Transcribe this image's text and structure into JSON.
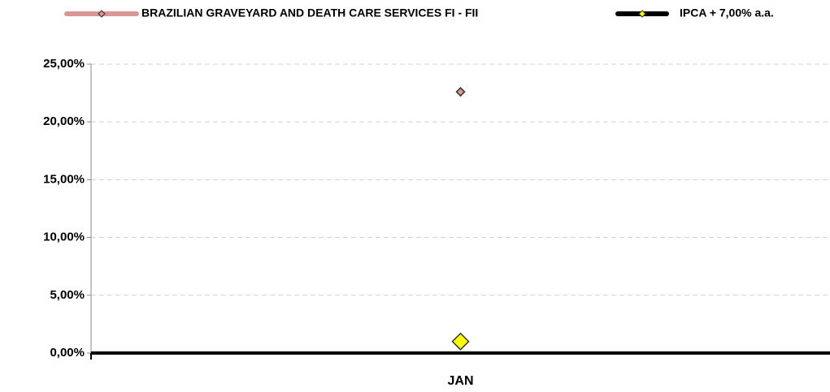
{
  "chart_data": {
    "type": "line",
    "categories": [
      "JAN"
    ],
    "series": [
      {
        "name": "BRAZILIAN GRAVEYARD AND DEATH CARE SERVICES FI - FII",
        "color": "#d99694",
        "values": [
          22.6
        ]
      },
      {
        "name": "IPCA + 7,00% a.a.",
        "color": "#000000",
        "marker_color": "#ffff00",
        "values": [
          1.0
        ]
      }
    ],
    "ylim": [
      0,
      25
    ],
    "yticks": [
      {
        "value": 0,
        "label": "0,00%"
      },
      {
        "value": 5,
        "label": "5,00%"
      },
      {
        "value": 10,
        "label": "10,00%"
      },
      {
        "value": 15,
        "label": "15,00%"
      },
      {
        "value": 20,
        "label": "20,00%"
      },
      {
        "value": 25,
        "label": "25,00%"
      }
    ],
    "grid": true
  }
}
